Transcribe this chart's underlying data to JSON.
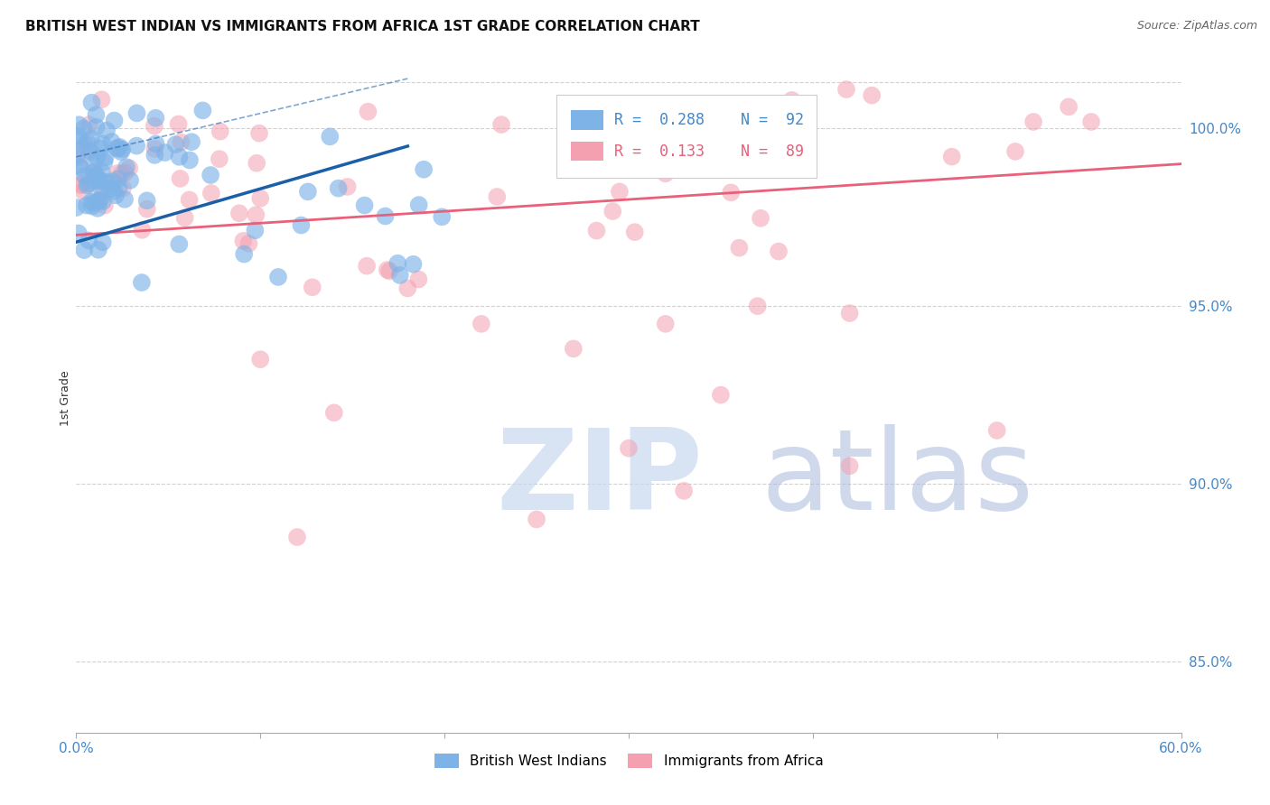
{
  "title": "BRITISH WEST INDIAN VS IMMIGRANTS FROM AFRICA 1ST GRADE CORRELATION CHART",
  "source": "Source: ZipAtlas.com",
  "ylabel": "1st Grade",
  "xmin": 0.0,
  "xmax": 60.0,
  "ymin": 83.0,
  "ymax": 101.8,
  "yticks": [
    85.0,
    90.0,
    95.0,
    100.0
  ],
  "ytick_labels": [
    "85.0%",
    "90.0%",
    "95.0%",
    "100.0%"
  ],
  "blue_R": 0.288,
  "blue_N": 92,
  "pink_R": 0.133,
  "pink_N": 89,
  "blue_color": "#7EB3E8",
  "pink_color": "#F4A0B0",
  "blue_line_color": "#1A5FA8",
  "pink_line_color": "#E8607A",
  "legend_blue_label": "British West Indians",
  "legend_pink_label": "Immigrants from Africa",
  "watermark_color": "#C8D8EE",
  "title_fontsize": 11,
  "source_fontsize": 9,
  "axis_label_color": "#4488CC",
  "grid_color": "#CCCCCC",
  "background_color": "#FFFFFF",
  "blue_trend_x0": 0.0,
  "blue_trend_y0": 96.8,
  "blue_trend_x1": 18.0,
  "blue_trend_y1": 99.5,
  "blue_dash_x0": 0.0,
  "blue_dash_y0": 99.2,
  "blue_dash_x1": 18.0,
  "blue_dash_y1": 101.4,
  "pink_trend_x0": 0.0,
  "pink_trend_y0": 97.0,
  "pink_trend_x1": 60.0,
  "pink_trend_y1": 99.0
}
